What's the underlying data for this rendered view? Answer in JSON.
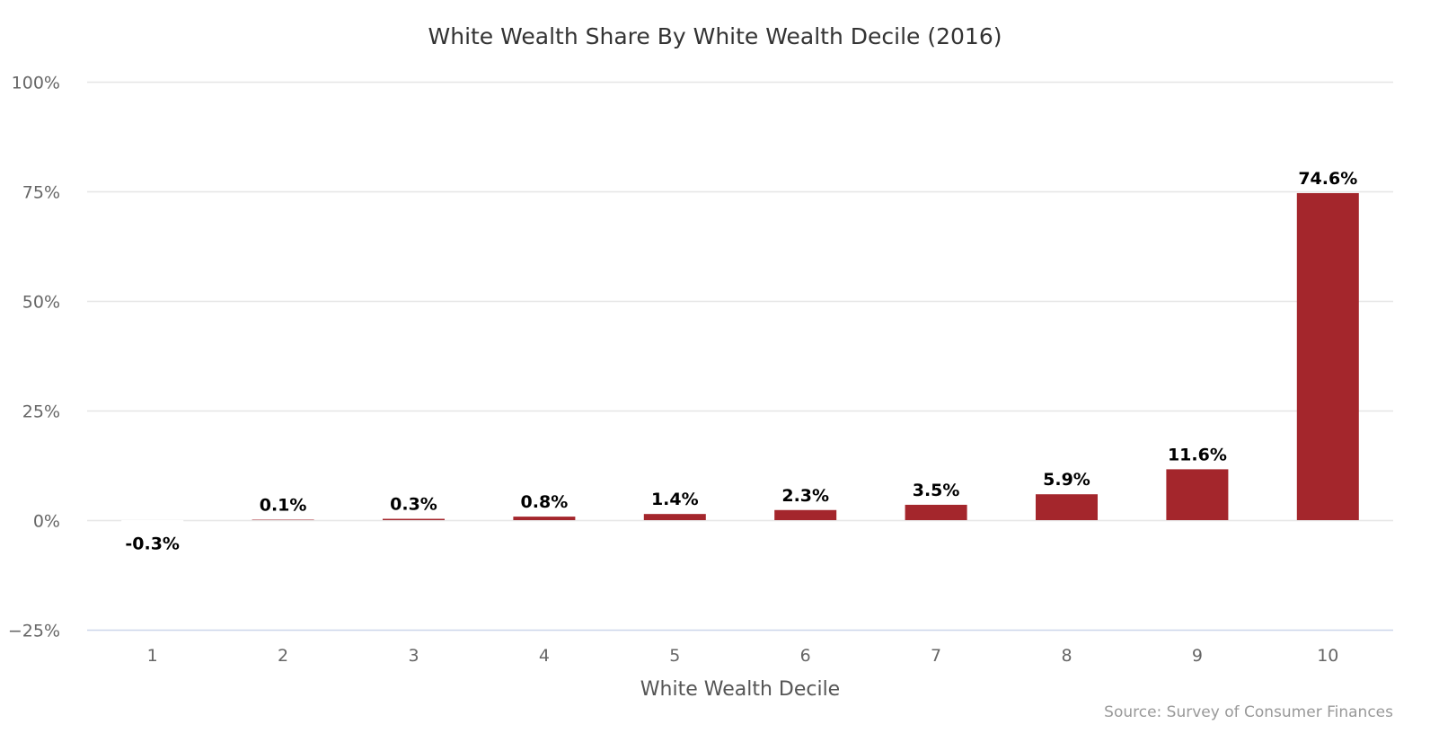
{
  "chart_data": {
    "type": "bar",
    "title": "White Wealth Share By White Wealth Decile (2016)",
    "xlabel": "White Wealth Decile",
    "ylabel": "",
    "categories": [
      "1",
      "2",
      "3",
      "4",
      "5",
      "6",
      "7",
      "8",
      "9",
      "10"
    ],
    "values": [
      -0.3,
      0.1,
      0.3,
      0.8,
      1.4,
      2.3,
      3.5,
      5.9,
      11.6,
      74.6
    ],
    "data_labels": [
      "-0.3%",
      "0.1%",
      "0.3%",
      "0.8%",
      "1.4%",
      "2.3%",
      "3.5%",
      "5.9%",
      "11.6%",
      "74.6%"
    ],
    "y_ticks": [
      100,
      75,
      50,
      25,
      0,
      -25
    ],
    "y_tick_labels": [
      "100%",
      "75%",
      "50%",
      "25%",
      "0%",
      "−25%"
    ],
    "ylim": [
      -25,
      100
    ],
    "grid": true,
    "legend": "none",
    "bar_color": "#a4262c",
    "source": "Source: Survey of Consumer Finances"
  }
}
